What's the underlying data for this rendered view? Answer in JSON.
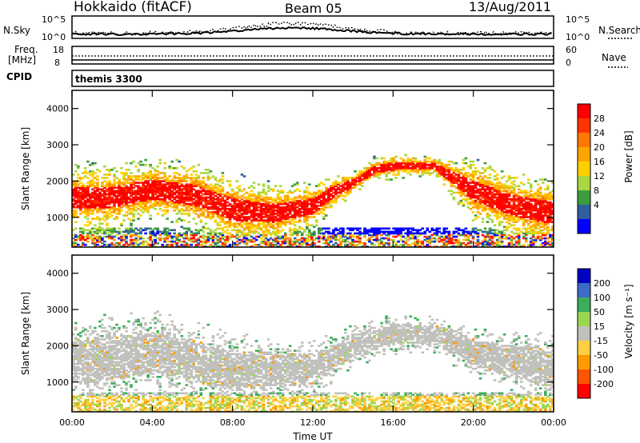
{
  "header": {
    "station": "Hokkaido (fitACF)",
    "beam": "Beam 05",
    "date": "13/Aug/2011"
  },
  "top_panel": {
    "left_label": "N.Sky",
    "right_label": "N.Search",
    "left_ticks": [
      "10^5",
      "10^0"
    ],
    "right_ticks": [
      "10^5",
      "10^0"
    ]
  },
  "freq_panel": {
    "left_label_1": "Freq.",
    "left_label_2": "[MHz]",
    "right_label": "Nave",
    "left_ticks": [
      "18",
      "8"
    ],
    "right_ticks": [
      "60",
      "0"
    ]
  },
  "cpid_panel": {
    "label": "CPID",
    "program": "themis 3300"
  },
  "x_axis": {
    "ticks": [
      "00:00",
      "04:00",
      "08:00",
      "12:00",
      "16:00",
      "20:00",
      "00:00"
    ],
    "label": "Time UT"
  },
  "chart_data": [
    {
      "type": "heatmap",
      "title": "",
      "xlabel": "Time UT",
      "ylabel": "Slant Range [km]",
      "xlim_hours": [
        0,
        24
      ],
      "ylim_km": [
        180,
        4500
      ],
      "yticks": [
        "1000",
        "2000",
        "3000",
        "4000"
      ],
      "yticks_values": [
        1000,
        2000,
        3000,
        4000
      ],
      "colorbar_label": "Power [dB]",
      "colorbar_ticks": [
        "28",
        "24",
        "20",
        "16",
        "12",
        "8",
        "4"
      ],
      "colorbar_colors": [
        "#ff0000",
        "#ff3300",
        "#ff7700",
        "#ffa500",
        "#ffd000",
        "#a8d840",
        "#3c9c3c",
        "#2f5f9f",
        "#0000ff"
      ],
      "band_center_km": [
        [
          0,
          1500
        ],
        [
          2,
          1550
        ],
        [
          4,
          1750
        ],
        [
          6,
          1600
        ],
        [
          8,
          1200
        ],
        [
          10,
          1100
        ],
        [
          12,
          1300
        ],
        [
          13,
          1700
        ],
        [
          14,
          1950
        ],
        [
          15,
          2300
        ],
        [
          16,
          2400
        ],
        [
          18,
          2400
        ],
        [
          20,
          1700
        ],
        [
          22,
          1300
        ],
        [
          24,
          1100
        ]
      ],
      "band_width_km": [
        [
          0,
          1000
        ],
        [
          4,
          900
        ],
        [
          8,
          1000
        ],
        [
          12,
          700
        ],
        [
          14,
          350
        ],
        [
          16,
          350
        ],
        [
          18,
          300
        ],
        [
          20,
          900
        ],
        [
          24,
          1000
        ]
      ]
    },
    {
      "type": "heatmap",
      "title": "",
      "xlabel": "Time UT",
      "ylabel": "Slant Range [km]",
      "xlim_hours": [
        0,
        24
      ],
      "ylim_km": [
        180,
        4500
      ],
      "yticks": [
        "1000",
        "2000",
        "3000",
        "4000"
      ],
      "yticks_values": [
        1000,
        2000,
        3000,
        4000
      ],
      "colorbar_label": "Velocity [m s⁻¹]",
      "colorbar_ticks": [
        "200",
        "100",
        "50",
        "15",
        "-15",
        "-50",
        "-100",
        "-200"
      ],
      "colorbar_colors": [
        "#0000c0",
        "#3c6cc8",
        "#3cae5a",
        "#9ad650",
        "#c0c0bc",
        "#ffd040",
        "#ff9a00",
        "#ff5500",
        "#ff0000"
      ],
      "band_center_km": [
        [
          0,
          1500
        ],
        [
          4,
          1800
        ],
        [
          8,
          1300
        ],
        [
          12,
          1350
        ],
        [
          14,
          2000
        ],
        [
          16,
          2300
        ],
        [
          18,
          2300
        ],
        [
          20,
          1800
        ],
        [
          24,
          1300
        ]
      ],
      "band_width_km": [
        [
          0,
          1200
        ],
        [
          8,
          1000
        ],
        [
          14,
          600
        ],
        [
          18,
          500
        ],
        [
          24,
          1000
        ]
      ]
    }
  ]
}
